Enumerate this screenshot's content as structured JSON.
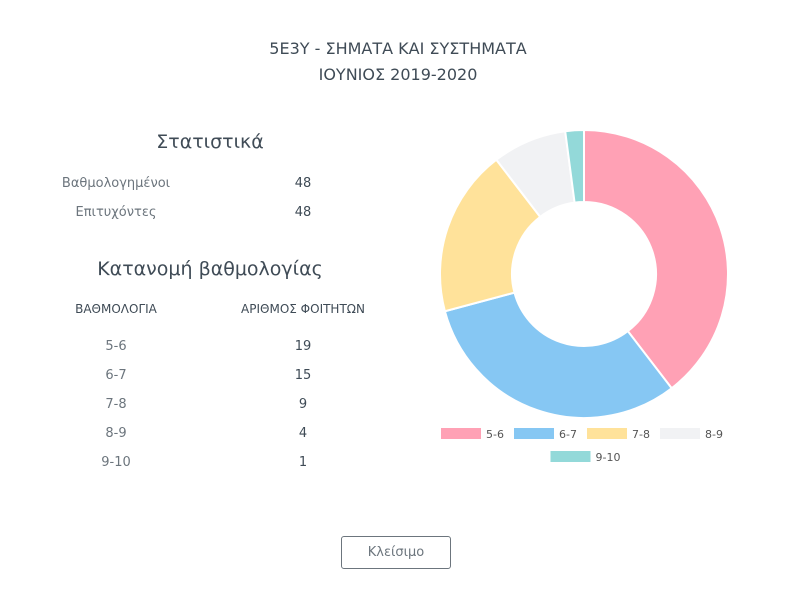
{
  "header": {
    "title_line1": "5Ε3Υ - ΣΗΜΑΤΑ ΚΑΙ ΣΥΣΤΗΜΑΤΑ",
    "title_line2": "ΙΟΥΝΙΟΣ 2019-2020"
  },
  "stats": {
    "heading": "Στατιστικά",
    "rows": [
      {
        "label": "Βαθμολογημένοι",
        "value": "48"
      },
      {
        "label": "Επιτυχόντες",
        "value": "48"
      }
    ]
  },
  "distribution": {
    "heading": "Κατανομή βαθμολογίας",
    "col_grade": "ΒΑΘΜΟΛΟΓΙΑ",
    "col_count": "ΑΡΙΘΜΟΣ ΦΟΙΤΗΤΩΝ",
    "rows": [
      {
        "grade": "5-6",
        "count": "19"
      },
      {
        "grade": "6-7",
        "count": "15"
      },
      {
        "grade": "7-8",
        "count": "9"
      },
      {
        "grade": "8-9",
        "count": "4"
      },
      {
        "grade": "9-10",
        "count": "1"
      }
    ]
  },
  "chart_data": {
    "type": "pie",
    "donut": true,
    "categories": [
      "5-6",
      "6-7",
      "7-8",
      "8-9",
      "9-10"
    ],
    "values": [
      19,
      15,
      9,
      4,
      1
    ],
    "colors": [
      "#ffa1b5",
      "#86c7f3",
      "#ffe29a",
      "#f1f2f4",
      "#93d9d9"
    ],
    "legend_position": "bottom"
  },
  "footer": {
    "close_label": "Κλείσιμο"
  }
}
